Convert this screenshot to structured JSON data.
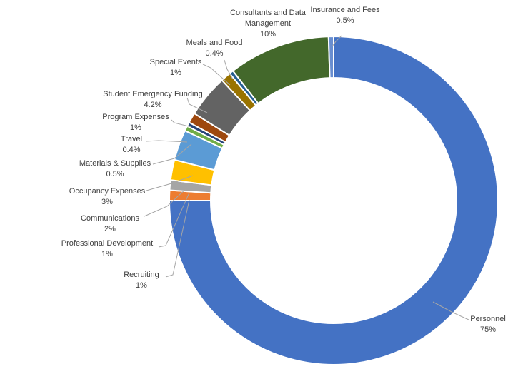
{
  "chart_data": {
    "type": "pie",
    "variant": "donut",
    "title": "",
    "start_angle_deg": 0,
    "categories": [
      "Personnel",
      "Recruiting",
      "Professional Development",
      "Communications",
      "Occupancy Expenses",
      "Materials & Supplies",
      "Travel",
      "Program Expenses",
      "Student Emergency Funding",
      "Special Events",
      "Meals and Food",
      "Consultants and Data Management",
      "Insurance and Fees"
    ],
    "values": [
      75,
      1,
      1,
      2,
      3,
      0.5,
      0.4,
      1,
      4.2,
      1,
      0.4,
      10,
      0.5
    ],
    "value_labels": [
      "75%",
      "1%",
      "1%",
      "2%",
      "3%",
      "0.5%",
      "0.4%",
      "1%",
      "4.2%",
      "1%",
      "0.4%",
      "10%",
      "0.5%"
    ],
    "colors": [
      "#4472C4",
      "#ED7D31",
      "#A5A5A5",
      "#FFC000",
      "#5B9BD5",
      "#70AD47",
      "#264478",
      "#9E480E",
      "#636363",
      "#997300",
      "#255E91",
      "#43682B",
      "#698ED0"
    ],
    "legend": "none",
    "data_labels": "outside with leader lines"
  }
}
